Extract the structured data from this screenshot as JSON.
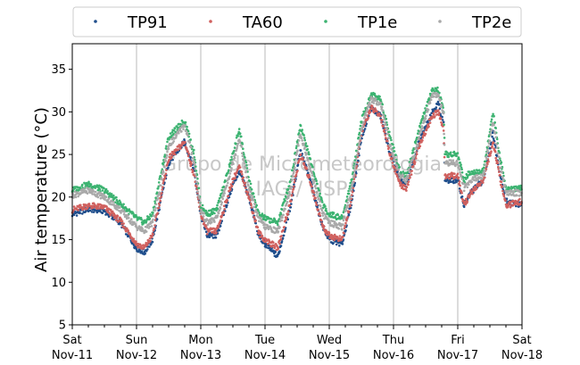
{
  "chart_data": {
    "type": "scatter",
    "ylabel": "Air temperature (°C)",
    "ylim": [
      5,
      38
    ],
    "yticks": [
      5,
      10,
      15,
      20,
      25,
      30,
      35
    ],
    "xlim": [
      0,
      7
    ],
    "x_ticks": [
      {
        "x": 0,
        "day": "Sat",
        "date": "Nov-11"
      },
      {
        "x": 1,
        "day": "Sun",
        "date": "Nov-12"
      },
      {
        "x": 2,
        "day": "Mon",
        "date": "Nov-13"
      },
      {
        "x": 3,
        "day": "Tue",
        "date": "Nov-14"
      },
      {
        "x": 4,
        "day": "Wed",
        "date": "Nov-15"
      },
      {
        "x": 5,
        "day": "Thu",
        "date": "Nov-16"
      },
      {
        "x": 6,
        "day": "Fri",
        "date": "Nov-17"
      },
      {
        "x": 7,
        "day": "Sat",
        "date": "Nov-18"
      }
    ],
    "grid": "vertical lines at day boundaries",
    "legend_placement": "top, above plot",
    "watermark": [
      "Grupo de Micrometeorologia",
      "IAG / USP"
    ],
    "series": [
      {
        "name": "TP91",
        "color": "#1f4e8c",
        "points": [
          [
            0,
            18.0
          ],
          [
            0.25,
            18.6
          ],
          [
            0.5,
            18.4
          ],
          [
            0.75,
            17.0
          ],
          [
            1.0,
            14.0
          ],
          [
            1.12,
            13.5
          ],
          [
            1.25,
            15.0
          ],
          [
            1.5,
            24.0
          ],
          [
            1.75,
            26.5
          ],
          [
            1.9,
            23.0
          ],
          [
            2.0,
            18.0
          ],
          [
            2.1,
            15.5
          ],
          [
            2.25,
            15.5
          ],
          [
            2.5,
            21.5
          ],
          [
            2.6,
            23.0
          ],
          [
            2.75,
            20.0
          ],
          [
            2.9,
            15.5
          ],
          [
            3.0,
            14.5
          ],
          [
            3.2,
            13.0
          ],
          [
            3.4,
            19.0
          ],
          [
            3.55,
            25.5
          ],
          [
            3.7,
            22.0
          ],
          [
            3.9,
            16.5
          ],
          [
            4.0,
            15.0
          ],
          [
            4.2,
            14.5
          ],
          [
            4.35,
            19.5
          ],
          [
            4.5,
            27.0
          ],
          [
            4.65,
            30.5
          ],
          [
            4.8,
            29.5
          ],
          [
            4.95,
            25.0
          ],
          [
            5.1,
            22.0
          ],
          [
            5.2,
            21.5
          ],
          [
            5.4,
            26.5
          ],
          [
            5.6,
            30.0
          ],
          [
            5.7,
            31.0
          ],
          [
            5.78,
            28.5
          ],
          [
            5.8,
            22.0
          ],
          [
            6.0,
            22.0
          ],
          [
            6.1,
            19.0
          ],
          [
            6.2,
            20.5
          ],
          [
            6.4,
            22.0
          ],
          [
            6.55,
            27.5
          ],
          [
            6.65,
            23.0
          ],
          [
            6.75,
            19.5
          ],
          [
            7.0,
            19.0
          ]
        ]
      },
      {
        "name": "TA60",
        "color": "#d0605e",
        "points": [
          [
            0,
            18.5
          ],
          [
            0.25,
            19.0
          ],
          [
            0.5,
            18.8
          ],
          [
            0.75,
            17.2
          ],
          [
            1.0,
            14.5
          ],
          [
            1.12,
            14.0
          ],
          [
            1.25,
            15.5
          ],
          [
            1.5,
            24.5
          ],
          [
            1.75,
            26.5
          ],
          [
            1.9,
            22.5
          ],
          [
            2.0,
            18.0
          ],
          [
            2.1,
            16.0
          ],
          [
            2.25,
            16.0
          ],
          [
            2.5,
            22.0
          ],
          [
            2.6,
            23.5
          ],
          [
            2.75,
            20.0
          ],
          [
            2.9,
            15.8
          ],
          [
            3.0,
            15.0
          ],
          [
            3.2,
            14.0
          ],
          [
            3.4,
            19.5
          ],
          [
            3.55,
            25.0
          ],
          [
            3.7,
            22.0
          ],
          [
            3.9,
            16.5
          ],
          [
            4.0,
            15.5
          ],
          [
            4.2,
            15.0
          ],
          [
            4.35,
            20.0
          ],
          [
            4.5,
            27.5
          ],
          [
            4.65,
            30.5
          ],
          [
            4.8,
            29.5
          ],
          [
            4.95,
            25.0
          ],
          [
            5.1,
            21.5
          ],
          [
            5.2,
            21.0
          ],
          [
            5.4,
            26.0
          ],
          [
            5.6,
            29.5
          ],
          [
            5.7,
            30.0
          ],
          [
            5.78,
            28.0
          ],
          [
            5.8,
            22.5
          ],
          [
            6.0,
            22.5
          ],
          [
            6.1,
            19.0
          ],
          [
            6.2,
            20.5
          ],
          [
            6.4,
            22.0
          ],
          [
            6.55,
            26.5
          ],
          [
            6.65,
            22.5
          ],
          [
            6.75,
            19.0
          ],
          [
            7.0,
            19.5
          ]
        ]
      },
      {
        "name": "TP1e",
        "color": "#3cb371",
        "points": [
          [
            0,
            20.8
          ],
          [
            0.25,
            21.5
          ],
          [
            0.5,
            20.8
          ],
          [
            0.75,
            19.2
          ],
          [
            1.0,
            17.5
          ],
          [
            1.12,
            17.0
          ],
          [
            1.25,
            18.0
          ],
          [
            1.5,
            27.0
          ],
          [
            1.75,
            29.0
          ],
          [
            1.9,
            25.0
          ],
          [
            2.0,
            19.0
          ],
          [
            2.1,
            18.0
          ],
          [
            2.25,
            18.5
          ],
          [
            2.5,
            25.0
          ],
          [
            2.6,
            28.0
          ],
          [
            2.75,
            22.0
          ],
          [
            2.9,
            18.0
          ],
          [
            3.0,
            17.5
          ],
          [
            3.2,
            17.0
          ],
          [
            3.4,
            22.0
          ],
          [
            3.55,
            28.5
          ],
          [
            3.7,
            24.5
          ],
          [
            3.9,
            19.0
          ],
          [
            4.0,
            18.0
          ],
          [
            4.2,
            17.5
          ],
          [
            4.35,
            22.0
          ],
          [
            4.5,
            29.0
          ],
          [
            4.65,
            32.0
          ],
          [
            4.8,
            31.5
          ],
          [
            4.95,
            27.0
          ],
          [
            5.1,
            23.0
          ],
          [
            5.2,
            22.5
          ],
          [
            5.4,
            28.0
          ],
          [
            5.6,
            32.5
          ],
          [
            5.7,
            32.5
          ],
          [
            5.78,
            30.0
          ],
          [
            5.8,
            25.0
          ],
          [
            6.0,
            25.0
          ],
          [
            6.1,
            22.0
          ],
          [
            6.2,
            23.0
          ],
          [
            6.4,
            23.0
          ],
          [
            6.55,
            30.0
          ],
          [
            6.65,
            25.0
          ],
          [
            6.75,
            21.0
          ],
          [
            7.0,
            21.0
          ]
        ]
      },
      {
        "name": "TP2e",
        "color": "#a9a9a9",
        "points": [
          [
            0,
            20.2
          ],
          [
            0.25,
            20.8
          ],
          [
            0.5,
            20.0
          ],
          [
            0.75,
            18.5
          ],
          [
            1.0,
            16.5
          ],
          [
            1.12,
            16.0
          ],
          [
            1.25,
            17.0
          ],
          [
            1.5,
            26.0
          ],
          [
            1.75,
            28.5
          ],
          [
            1.9,
            24.0
          ],
          [
            2.0,
            18.5
          ],
          [
            2.1,
            17.0
          ],
          [
            2.25,
            17.5
          ],
          [
            2.5,
            24.0
          ],
          [
            2.6,
            27.0
          ],
          [
            2.75,
            21.0
          ],
          [
            2.9,
            17.5
          ],
          [
            3.0,
            16.5
          ],
          [
            3.2,
            16.0
          ],
          [
            3.4,
            21.0
          ],
          [
            3.55,
            27.5
          ],
          [
            3.7,
            23.5
          ],
          [
            3.9,
            18.0
          ],
          [
            4.0,
            17.0
          ],
          [
            4.2,
            16.5
          ],
          [
            4.35,
            21.0
          ],
          [
            4.5,
            28.0
          ],
          [
            4.65,
            31.5
          ],
          [
            4.8,
            31.0
          ],
          [
            4.95,
            26.0
          ],
          [
            5.1,
            22.5
          ],
          [
            5.2,
            22.0
          ],
          [
            5.4,
            27.0
          ],
          [
            5.6,
            32.0
          ],
          [
            5.7,
            32.0
          ],
          [
            5.78,
            29.5
          ],
          [
            5.8,
            24.0
          ],
          [
            6.0,
            24.0
          ],
          [
            6.1,
            21.0
          ],
          [
            6.2,
            22.0
          ],
          [
            6.4,
            22.5
          ],
          [
            6.55,
            29.0
          ],
          [
            6.65,
            24.0
          ],
          [
            6.75,
            20.5
          ],
          [
            7.0,
            20.5
          ]
        ]
      }
    ]
  }
}
